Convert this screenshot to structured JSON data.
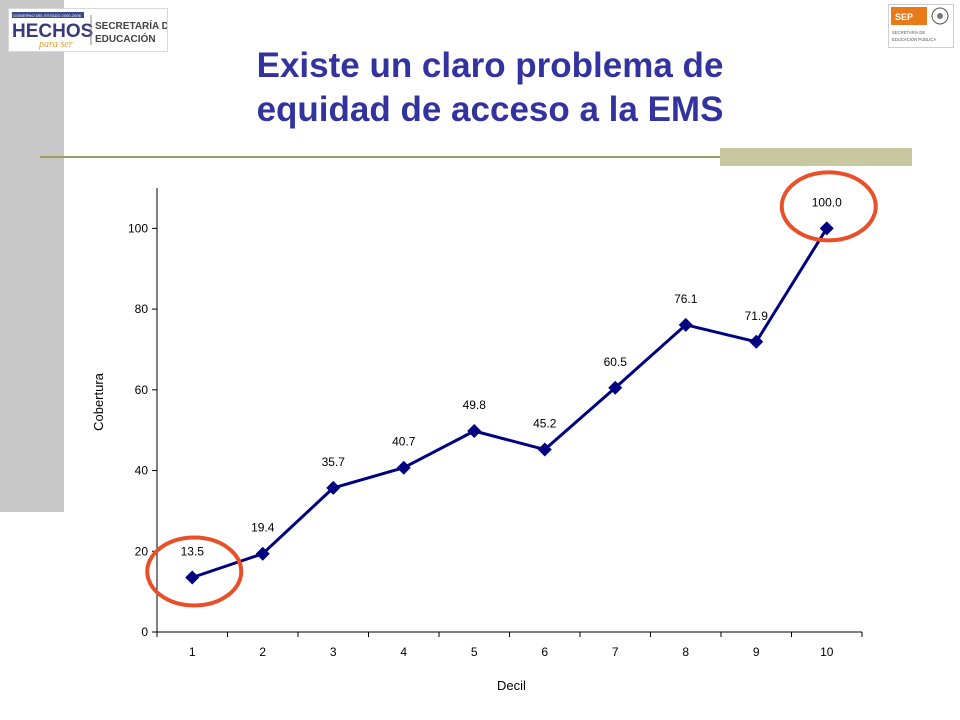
{
  "header": {
    "logo_left": {
      "brand": "HECHOS",
      "brand_script": "para ser",
      "top_text": "GOBIERNO DEL ESTADO 2000-2006",
      "org_line1": "SECRETARÍA DE",
      "org_line2": "EDUCACIÓN"
    },
    "logo_right": {
      "acronym": "SEP",
      "line1": "SECRETARÍA DE",
      "line2": "EDUCACIÓN PÚBLICA"
    },
    "title_line1": "Existe un claro problema de",
    "title_line2": "equidad de acceso a la EMS"
  },
  "colors": {
    "title": "#3333a0",
    "series_line": "#000080",
    "highlight_circle": "#e8502a",
    "accent_block": "#c8c8a0",
    "rule": "#9e9e5e",
    "side_band": "#c8c8c8"
  },
  "chart_data": {
    "type": "line",
    "x": [
      1,
      2,
      3,
      4,
      5,
      6,
      7,
      8,
      9,
      10
    ],
    "series": [
      {
        "values": [
          13.5,
          19.4,
          35.7,
          40.7,
          49.8,
          45.2,
          60.5,
          76.1,
          71.9,
          100.0
        ],
        "labels": [
          "13.5",
          "19.4",
          "35.7",
          "40.7",
          "49.8",
          "45.2",
          "60.5",
          "76.1",
          "71.9",
          "100.0"
        ]
      }
    ],
    "xlabel": "Decil",
    "ylabel": "Cobertura",
    "ylim": [
      0,
      110
    ],
    "yticks": [
      0,
      20,
      40,
      60,
      80,
      100
    ],
    "grid": false,
    "marker": "diamond",
    "highlighted_points": [
      1,
      10
    ]
  }
}
